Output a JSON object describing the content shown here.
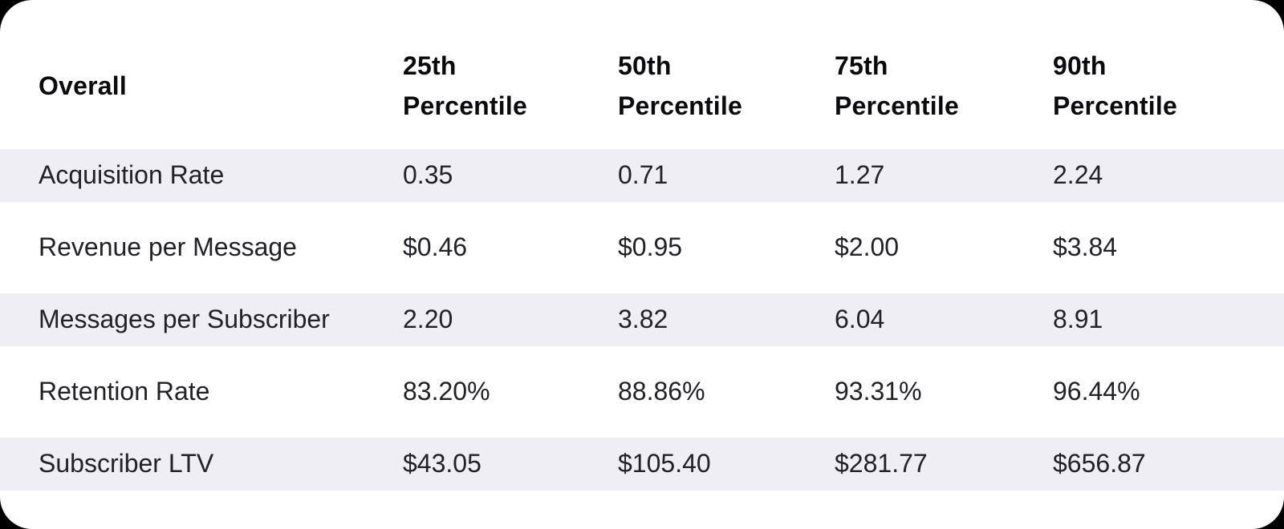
{
  "table": {
    "corner_label": "Overall",
    "columns": [
      "25th\nPercentile",
      "50th\nPercentile",
      "75th\nPercentile",
      "90th\nPercentile"
    ],
    "rows": [
      {
        "label": "Acquisition Rate",
        "values": [
          "0.35",
          "0.71",
          "1.27",
          "2.24"
        ]
      },
      {
        "label": "Revenue per Message",
        "values": [
          "$0.46",
          "$0.95",
          "$2.00",
          "$3.84"
        ]
      },
      {
        "label": "Messages per Subscriber",
        "values": [
          "2.20",
          "3.82",
          "6.04",
          "8.91"
        ]
      },
      {
        "label": "Retention Rate",
        "values": [
          "83.20%",
          "88.86%",
          "93.31%",
          "96.44%"
        ]
      },
      {
        "label": "Subscriber LTV",
        "values": [
          "$43.05",
          "$105.40",
          "$281.77",
          "$656.87"
        ]
      }
    ],
    "colors": {
      "page_bg": "#000000",
      "card_bg": "#ffffff",
      "stripe": "#efeef5",
      "header_text": "#0b0b0e",
      "body_text": "#212126"
    }
  },
  "chart_data": {
    "type": "table",
    "title": "Overall",
    "categories": [
      "25th Percentile",
      "50th Percentile",
      "75th Percentile",
      "90th Percentile"
    ],
    "series": [
      {
        "name": "Acquisition Rate",
        "values": [
          0.35,
          0.71,
          1.27,
          2.24
        ]
      },
      {
        "name": "Revenue per Message",
        "values": [
          0.46,
          0.95,
          2.0,
          3.84
        ],
        "unit": "$"
      },
      {
        "name": "Messages per Subscriber",
        "values": [
          2.2,
          3.82,
          6.04,
          8.91
        ]
      },
      {
        "name": "Retention Rate",
        "values": [
          83.2,
          88.86,
          93.31,
          96.44
        ],
        "unit": "%"
      },
      {
        "name": "Subscriber LTV",
        "values": [
          43.05,
          105.4,
          281.77,
          656.87
        ],
        "unit": "$"
      }
    ]
  }
}
